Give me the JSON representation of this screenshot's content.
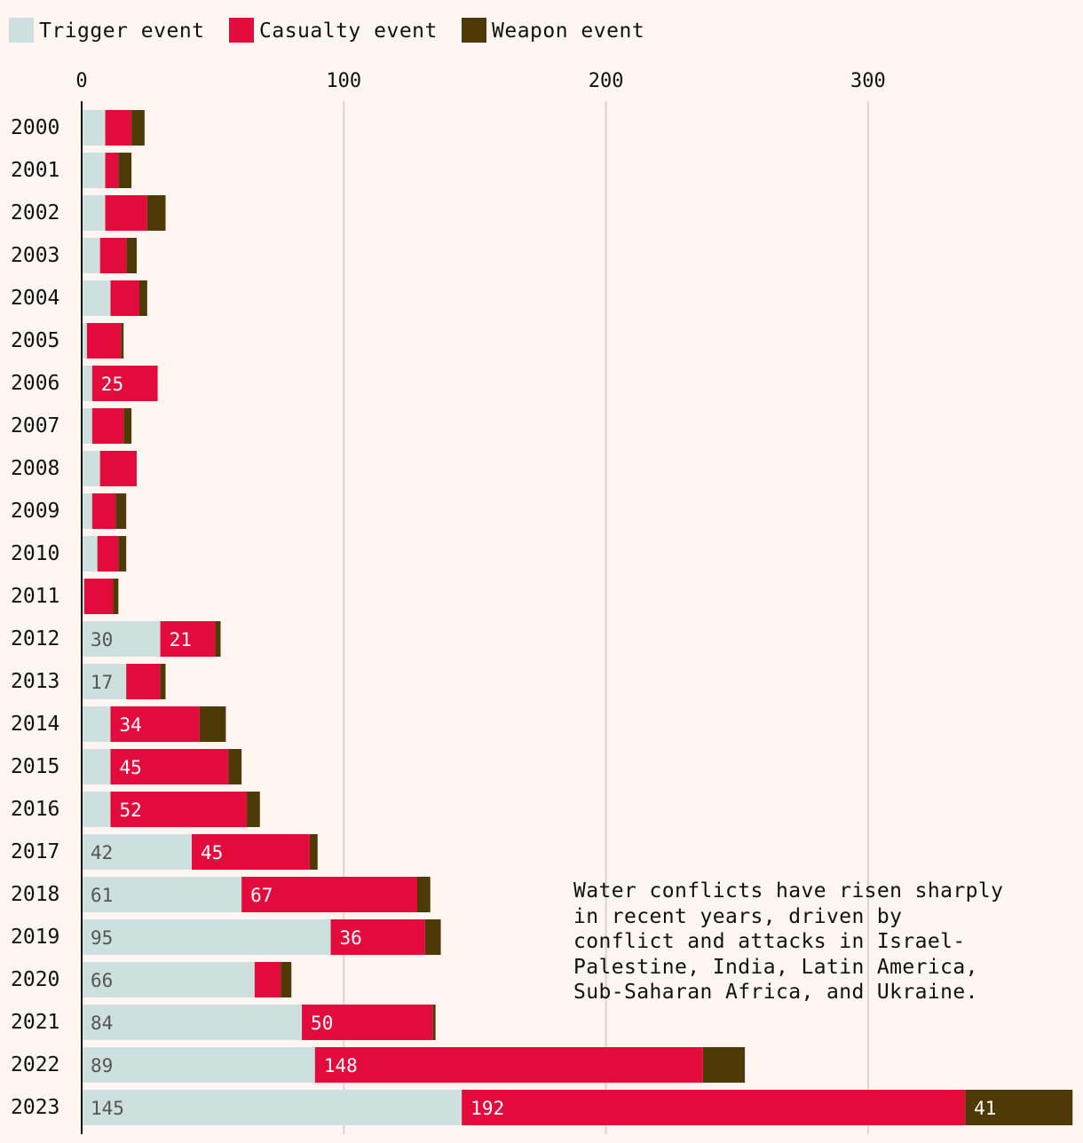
{
  "chart_data": {
    "type": "bar",
    "orientation": "horizontal",
    "stacked": true,
    "legend_position": "top-left",
    "grid": true,
    "xlim": [
      0,
      378
    ],
    "x_ticks": [
      "0",
      "100",
      "200",
      "300"
    ],
    "categories": [
      "2000",
      "2001",
      "2002",
      "2003",
      "2004",
      "2005",
      "2006",
      "2007",
      "2008",
      "2009",
      "2010",
      "2011",
      "2012",
      "2013",
      "2014",
      "2015",
      "2016",
      "2017",
      "2018",
      "2019",
      "2020",
      "2021",
      "2022",
      "2023"
    ],
    "series": [
      {
        "name": "Trigger event",
        "color": "#cde0dd",
        "values": [
          9,
          9,
          9,
          7,
          11,
          2,
          4,
          4,
          7,
          4,
          6,
          1,
          30,
          17,
          11,
          11,
          11,
          42,
          61,
          95,
          66,
          84,
          89,
          145
        ],
        "labels": [
          "",
          "",
          "",
          "",
          "",
          "",
          "",
          "",
          "",
          "",
          "",
          "",
          "30",
          "17",
          "",
          "",
          "",
          "42",
          "61",
          "95",
          "66",
          "84",
          "89",
          "145"
        ]
      },
      {
        "name": "Casualty event",
        "color": "#e30b3b",
        "values": [
          10,
          5,
          16,
          10,
          11,
          13,
          25,
          12,
          14,
          9,
          8,
          11,
          21,
          13,
          34,
          45,
          52,
          45,
          67,
          36,
          10,
          50,
          148,
          192
        ],
        "labels": [
          "",
          "",
          "",
          "",
          "",
          "",
          "25",
          "",
          "",
          "",
          "",
          "",
          "21",
          "",
          "34",
          "45",
          "52",
          "45",
          "67",
          "36",
          "",
          "50",
          "148",
          "192"
        ]
      },
      {
        "name": "Weapon event",
        "color": "#4d3a06",
        "values": [
          5,
          5,
          7,
          4,
          3,
          1,
          0,
          3,
          0,
          4,
          3,
          2,
          2,
          2,
          10,
          5,
          5,
          3,
          5,
          6,
          4,
          1,
          16,
          41
        ],
        "labels": [
          "",
          "",
          "",
          "",
          "",
          "",
          "",
          "",
          "",
          "",
          "",
          "",
          "",
          "",
          "",
          "",
          "",
          "",
          "",
          "",
          "",
          "",
          "",
          "41"
        ]
      }
    ],
    "annotation": "Water conflicts have risen sharply\nin recent years, driven by\nconflict and attacks in Israel-\nPalestine, India, Latin America,\nSub-Saharan Africa, and Ukraine."
  }
}
